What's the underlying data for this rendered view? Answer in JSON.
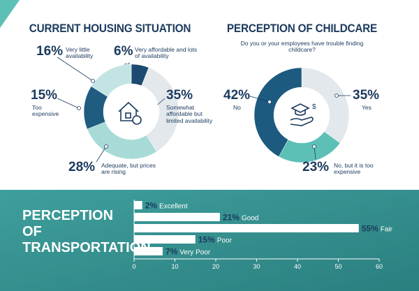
{
  "chart_data": [
    {
      "type": "pie",
      "donut": true,
      "title": "CURRENT HOUSING SITUATION",
      "categories": [
        "Very affordable and lots of availability",
        "Somewhat affordable but limited availability",
        "Adequate, but prices are rising",
        "Too expensive",
        "Very little availability"
      ],
      "values": [
        6,
        35,
        28,
        15,
        16
      ],
      "value_labels": [
        "6%",
        "35%",
        "28%",
        "15%",
        "16%"
      ],
      "colors": [
        "#1d4a70",
        "#e3e8ed",
        "#a8dbd7",
        "#1f5c80",
        "#c2e5e3"
      ]
    },
    {
      "type": "pie",
      "donut": true,
      "title": "PERCEPTION OF CHILDCARE",
      "subtitle": "Do you or your employees have trouble finding childcare?",
      "categories": [
        "Yes",
        "No, but it is too expensive",
        "No"
      ],
      "values": [
        35,
        23,
        42
      ],
      "value_labels": [
        "35%",
        "23%",
        "42%"
      ],
      "colors": [
        "#e3e8ed",
        "#5cc0b7",
        "#1d5a80"
      ]
    },
    {
      "type": "hbar",
      "title": "PERCEPTION OF TRANSPORTATION",
      "categories": [
        "Excellent",
        "Good",
        "Fair",
        "Poor",
        "Very Poor"
      ],
      "values": [
        2,
        21,
        55,
        15,
        7
      ],
      "value_labels": [
        "2%",
        "21%",
        "55%",
        "15%",
        "7%"
      ],
      "color": "#ffffff",
      "xlim": [
        0,
        60
      ],
      "xticks": [
        0,
        10,
        20,
        30,
        40,
        50,
        60
      ]
    }
  ]
}
